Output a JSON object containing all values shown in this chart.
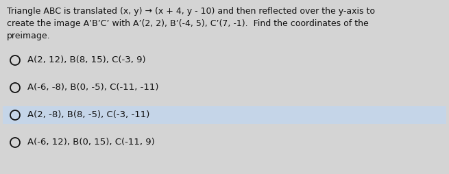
{
  "bg_color": "#d4d4d4",
  "text_color": "#111111",
  "title_lines": [
    "Triangle ABC is translated (x, y) → (x + 4, y - 10) and then reflected over the y-axis to",
    "create the image A’B’C’ with A’(2, 2), B’(-4, 5), C’(7, -1).  Find the coordinates of the",
    "preimage."
  ],
  "options": [
    "A(2, 12), B(8, 15), C(-3, 9)",
    "A(-6, -8), B(0, -5), C(-11, -11)",
    "A(2, -8), B(8, -5), C(-3, -11)",
    "A(-6, 12), B(0, 15), C(-11, 9)"
  ],
  "highlighted_option_index": 2,
  "highlight_color": "#c5d5e8",
  "font_size_title": 9.0,
  "font_size_options": 9.5,
  "title_font_weight": "normal",
  "option_font_weight": "normal"
}
